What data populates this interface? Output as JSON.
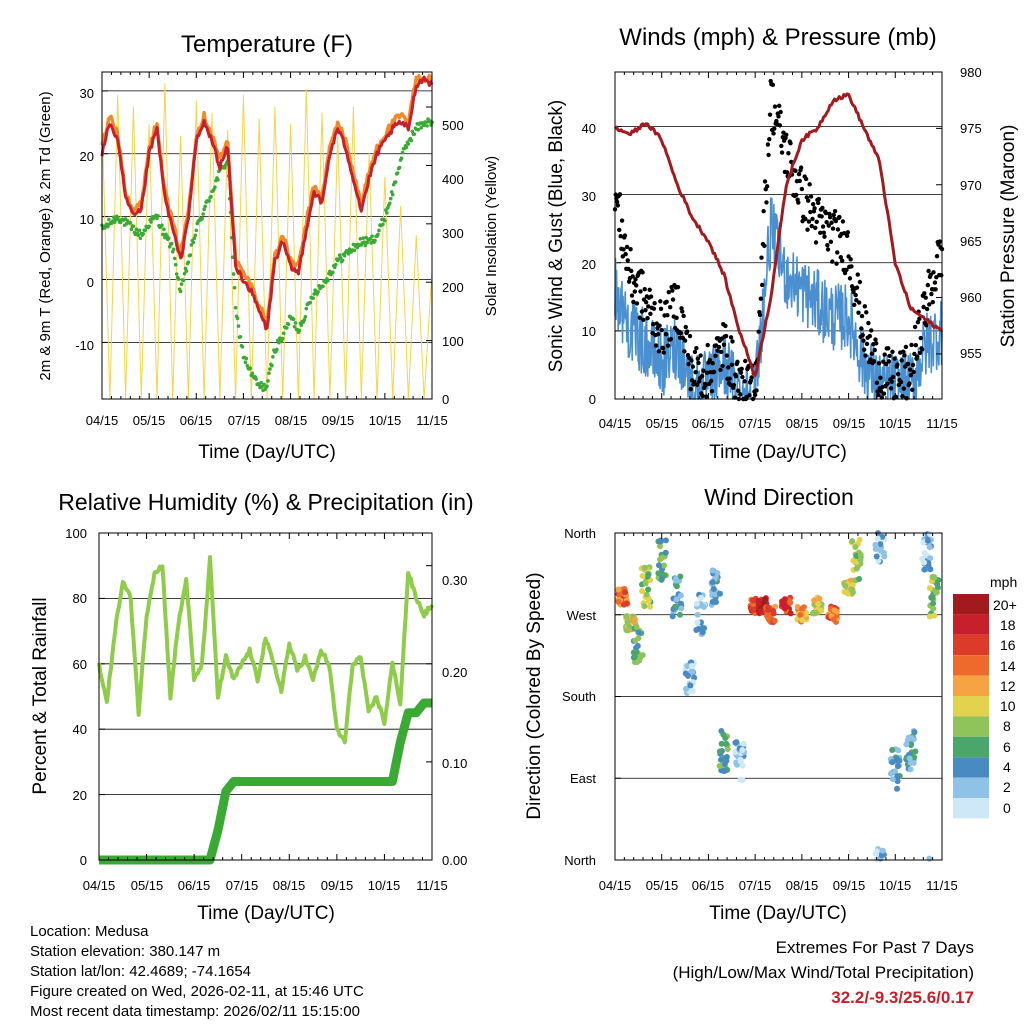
{
  "charts": {
    "temperature": {
      "title": "Temperature (F)",
      "ylabel_left": "2m & 9m T (Red, Orange) & 2m Td (Green)",
      "ylabel_right": "Solar Insolation (Yellow)",
      "xlabel": "Time (Day/UTC)",
      "left_ticks": [
        "30",
        "20",
        "10",
        "0",
        "-10"
      ],
      "right_ticks": [
        "500",
        "400",
        "300",
        "200",
        "100",
        "0"
      ]
    },
    "winds": {
      "title": "Winds (mph) & Pressure (mb)",
      "ylabel_left": "Sonic Wind & Gust (Blue, Black)",
      "ylabel_right": "Station Pressure (Maroon)",
      "xlabel": "Time (Day/UTC)",
      "left_ticks": [
        "40",
        "30",
        "20",
        "10",
        "0"
      ],
      "right_ticks": [
        "980",
        "975",
        "970",
        "965",
        "960",
        "955"
      ]
    },
    "humidity": {
      "title": "Relative Humidity (%) & Precipitation (in)",
      "ylabel_left": "Percent & Total Rainfall",
      "xlabel": "Time (Day/UTC)",
      "left_ticks": [
        "100",
        "80",
        "60",
        "40",
        "20",
        "0"
      ],
      "right_ticks": [
        "0.30",
        "0.20",
        "0.10",
        "0.00"
      ]
    },
    "direction": {
      "title": "Wind Direction",
      "ylabel_left": "Direction (Colored By Speed)",
      "xlabel": "Time (Day/UTC)",
      "dir_ticks": [
        "North",
        "West",
        "South",
        "East",
        "North"
      ],
      "legend_title": "mph",
      "legend_labels": [
        "20+",
        "18",
        "16",
        "14",
        "12",
        "10",
        "8",
        "6",
        "4",
        "2",
        "0"
      ],
      "legend_colors": [
        "#a31a1e",
        "#c8202a",
        "#dd3b2a",
        "#ee6a2c",
        "#f6a443",
        "#e3d24e",
        "#8fc45a",
        "#4aa66a",
        "#4a8ac2",
        "#8ec2e6",
        "#cfe8f7"
      ]
    }
  },
  "x_ticks": [
    "04/15",
    "05/15",
    "06/15",
    "07/15",
    "08/15",
    "09/15",
    "10/15",
    "11/15"
  ],
  "info": {
    "location": "Location: Medusa",
    "elevation": "Station elevation: 380.147 m",
    "latlon": "Station lat/lon: 42.4689; -74.1654",
    "created": "Figure created on Wed, 2026-02-11, at 15:46 UTC",
    "timestamp": "Most recent data timestamp: 2026/02/11 15:15:00"
  },
  "extremes": {
    "heading": "Extremes For Past 7 Days",
    "subheading": "(High/Low/Max Wind/Total Precipitation)",
    "values": "32.2/-9.3/25.6/0.17"
  },
  "colors": {
    "temp_2m": "#c8202a",
    "temp_9m": "#f08a2a",
    "dewpoint": "#3aaa35",
    "insolation": "#f5d54a",
    "wind": "#4a90d0",
    "gust": "#000000",
    "pressure": "#a31a1e",
    "humidity": "#8fcc4a",
    "precip": "#3aaa35"
  },
  "chart_data": [
    {
      "type": "line",
      "title": "Temperature (F)",
      "xlabel": "Time (Day/UTC)",
      "ylabel": "2m & 9m T (Red, Orange) & 2m Td (Green)",
      "y2label": "Solar Insolation (Yellow)",
      "x": [
        0,
        5,
        10,
        15,
        20,
        25,
        30,
        35,
        40,
        45,
        50,
        55,
        60,
        65,
        70,
        75,
        80,
        85,
        90,
        95,
        100,
        105,
        110,
        115,
        120,
        125,
        130,
        135,
        140,
        145,
        150,
        155,
        160,
        165,
        170,
        175,
        180,
        185,
        190,
        195,
        200,
        205,
        210
      ],
      "ylim": [
        -19,
        33
      ],
      "y2lim": [
        0,
        560
      ],
      "series": [
        {
          "name": "2m T",
          "values": [
            20,
            25,
            22,
            13,
            10,
            11,
            20,
            24,
            13,
            8,
            3,
            10,
            22,
            25,
            22,
            18,
            21,
            2,
            0,
            -2,
            -5,
            -8,
            3,
            6,
            2,
            1,
            8,
            14,
            12,
            20,
            24,
            21,
            16,
            11,
            16,
            20,
            22,
            24,
            25,
            24,
            31,
            32,
            31
          ]
        },
        {
          "name": "9m T",
          "values": [
            21,
            26,
            23,
            14,
            11,
            12,
            21,
            25,
            14,
            9,
            4,
            11,
            23,
            26,
            23,
            19,
            22,
            3,
            1,
            -1,
            -4,
            -7,
            4,
            7,
            3,
            2,
            9,
            15,
            13,
            21,
            25,
            22,
            17,
            12,
            17,
            21,
            23,
            25,
            26,
            25,
            32,
            32,
            32
          ]
        },
        {
          "name": "2m Td",
          "values": [
            8,
            9,
            10,
            9,
            8,
            7,
            9,
            10,
            7,
            5,
            -2,
            3,
            8,
            11,
            14,
            17,
            19,
            -5,
            -12,
            -15,
            -17,
            -17,
            -11,
            -9,
            -6,
            -8,
            -5,
            -2,
            -1,
            1,
            3,
            4,
            5,
            6,
            6,
            7,
            10,
            14,
            19,
            22,
            24,
            25,
            25
          ]
        },
        {
          "name": "Solar Insolation",
          "axis": "y2",
          "values": [
            480,
            0,
            520,
            0,
            500,
            0,
            470,
            0,
            540,
            0,
            450,
            0,
            510,
            0,
            490,
            0,
            460,
            0,
            520,
            0,
            480,
            0,
            500,
            0,
            470,
            0,
            530,
            0,
            490,
            0,
            450,
            0,
            500,
            0,
            420,
            0,
            380,
            0,
            330,
            0,
            280,
            0,
            220
          ]
        }
      ]
    },
    {
      "type": "line",
      "title": "Winds (mph) & Pressure (mb)",
      "xlabel": "Time (Day/UTC)",
      "ylabel": "Sonic Wind & Gust (Blue, Black)",
      "y2label": "Station Pressure (Maroon)",
      "x": [
        0,
        10,
        20,
        30,
        40,
        50,
        60,
        70,
        80,
        90,
        100,
        110,
        120,
        130,
        140,
        150,
        160,
        170,
        180,
        190,
        200,
        210
      ],
      "ylim": [
        0,
        48
      ],
      "y2lim": [
        951,
        980
      ],
      "series": [
        {
          "name": "Gust",
          "values": [
            30,
            18,
            14,
            10,
            14,
            4,
            4,
            8,
            2,
            1,
            44,
            36,
            30,
            26,
            24,
            22,
            10,
            4,
            3,
            4,
            14,
            22
          ]
        },
        {
          "name": "Sonic Wind",
          "values": [
            16,
            10,
            8,
            5,
            8,
            2,
            2,
            5,
            1,
            1,
            25,
            18,
            16,
            14,
            12,
            12,
            5,
            2,
            2,
            2,
            8,
            10
          ]
        },
        {
          "name": "Station Pressure",
          "axis": "y2",
          "values": [
            975,
            974.5,
            975.5,
            974,
            970,
            967,
            965,
            962,
            957,
            953,
            960,
            970,
            974,
            975,
            977.5,
            978,
            975,
            972,
            963,
            959,
            958,
            957
          ]
        }
      ]
    },
    {
      "type": "line",
      "title": "Relative Humidity (%) & Precipitation (in)",
      "xlabel": "Time (Day/UTC)",
      "ylabel": "Percent & Total Rainfall",
      "ylim": [
        0,
        100
      ],
      "y2lim": [
        0,
        0.3333
      ],
      "x": [
        0,
        5,
        10,
        15,
        20,
        25,
        30,
        35,
        40,
        45,
        50,
        55,
        60,
        65,
        70,
        75,
        80,
        85,
        90,
        95,
        100,
        105,
        110,
        115,
        120,
        125,
        130,
        135,
        140,
        145,
        150,
        155,
        160,
        165,
        170,
        175,
        180,
        185,
        190,
        195,
        200,
        205,
        210
      ],
      "series": [
        {
          "name": "Relative Humidity",
          "values": [
            60,
            48,
            70,
            85,
            80,
            45,
            75,
            88,
            90,
            50,
            72,
            86,
            55,
            60,
            92,
            50,
            62,
            55,
            60,
            64,
            55,
            68,
            60,
            52,
            66,
            58,
            62,
            55,
            64,
            60,
            40,
            36,
            60,
            62,
            45,
            50,
            42,
            60,
            48,
            88,
            80,
            75,
            78
          ]
        },
        {
          "name": "Total Precipitation",
          "axis": "y2",
          "values": [
            0,
            0,
            0,
            0,
            0,
            0,
            0,
            0,
            0,
            0,
            0,
            0,
            0,
            0,
            0,
            0.03,
            0.07,
            0.08,
            0.08,
            0.08,
            0.08,
            0.08,
            0.08,
            0.08,
            0.08,
            0.08,
            0.08,
            0.08,
            0.08,
            0.08,
            0.08,
            0.08,
            0.08,
            0.08,
            0.08,
            0.08,
            0.08,
            0.08,
            0.12,
            0.15,
            0.15,
            0.16,
            0.16
          ]
        }
      ]
    },
    {
      "type": "scatter",
      "title": "Wind Direction",
      "xlabel": "Time (Day/UTC)",
      "ylabel": "Direction (Colored By Speed)",
      "ylim": [
        0,
        360
      ],
      "x": [
        5,
        10,
        15,
        20,
        30,
        40,
        48,
        55,
        65,
        70,
        80,
        90,
        95,
        100,
        110,
        120,
        130,
        140,
        150,
        155,
        170,
        180,
        190,
        200,
        205
      ],
      "series": [
        {
          "name": "Direction (deg)",
          "values": [
            290,
            260,
            240,
            300,
            330,
            290,
            200,
            270,
            300,
            120,
            110,
            280,
            280,
            270,
            280,
            270,
            280,
            270,
            300,
            330,
            350,
            100,
            120,
            340,
            290
          ]
        },
        {
          "name": "Speed (mph)",
          "values": [
            14,
            10,
            6,
            8,
            6,
            4,
            2,
            2,
            4,
            6,
            2,
            16,
            18,
            14,
            16,
            12,
            10,
            14,
            10,
            8,
            2,
            4,
            4,
            2,
            8
          ]
        }
      ]
    }
  ]
}
